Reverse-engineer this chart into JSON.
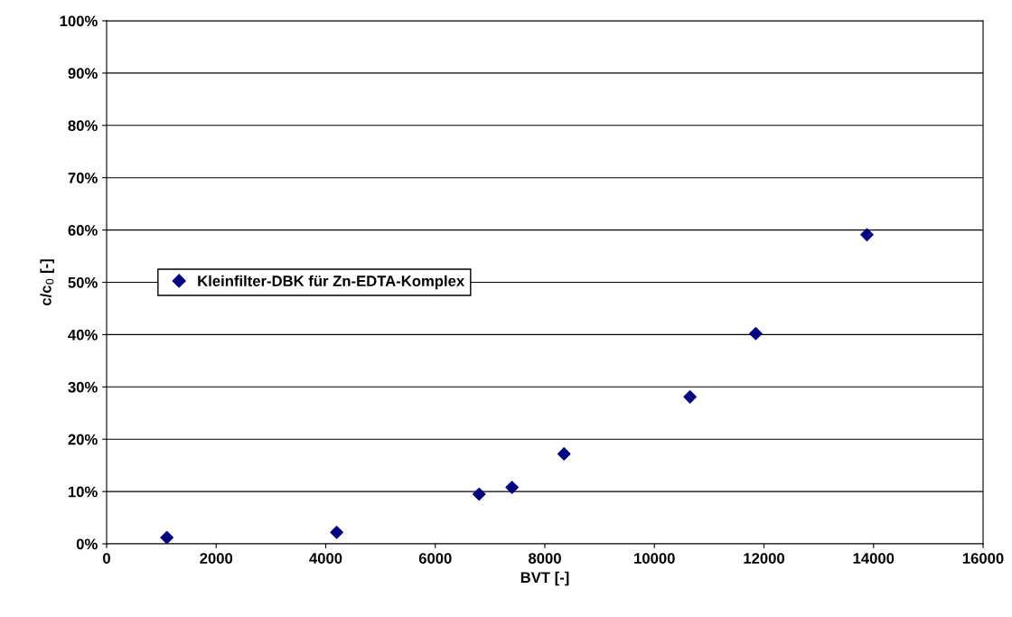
{
  "chart_data": {
    "type": "scatter",
    "xlabel": "BVT [-]",
    "ylabel": "c/c$_{0}$ [-]",
    "x": [
      1100,
      4200,
      6800,
      7400,
      8350,
      10650,
      11850,
      13880
    ],
    "series": [
      {
        "name": "Kleinfilter-DBK für Zn-EDTA-Komplex",
        "color": "#000080",
        "values": [
          1.2,
          2.2,
          9.5,
          10.8,
          17.2,
          28.1,
          40.2,
          59.1
        ]
      }
    ],
    "xlim": [
      0,
      16000
    ],
    "xticks": [
      0,
      2000,
      4000,
      6000,
      8000,
      10000,
      12000,
      14000,
      16000
    ],
    "ylim": [
      0,
      100
    ],
    "yticks": [
      {
        "value": 0,
        "label": "0%"
      },
      {
        "value": 10,
        "label": "10%"
      },
      {
        "value": 20,
        "label": "20%"
      },
      {
        "value": 30,
        "label": "30%"
      },
      {
        "value": 40,
        "label": "40%"
      },
      {
        "value": 50,
        "label": "50%"
      },
      {
        "value": 60,
        "label": "60%"
      },
      {
        "value": 70,
        "label": "70%"
      },
      {
        "value": 80,
        "label": "80%"
      },
      {
        "value": 90,
        "label": "90%"
      },
      {
        "value": 100,
        "label": "100%"
      }
    ],
    "grid": "y",
    "legend": "center left",
    "marker": "diamond"
  }
}
